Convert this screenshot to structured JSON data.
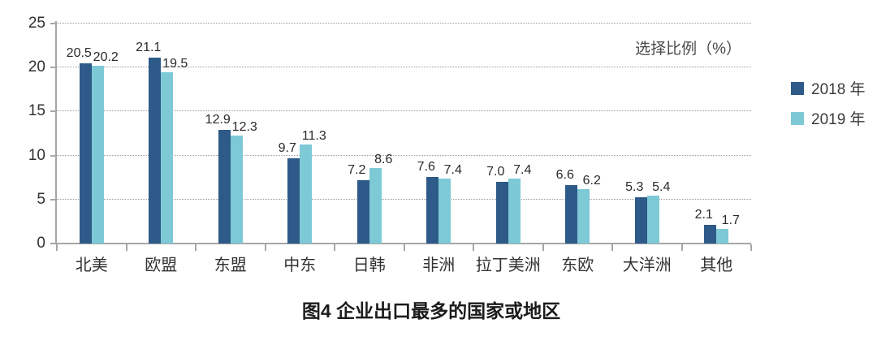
{
  "chart_data": {
    "type": "bar",
    "title": "图4 企业出口最多的国家或地区",
    "unit_label": "选择比例（%）",
    "caption": "图4 企业出口最多的国家或地区",
    "categories": [
      "北美",
      "欧盟",
      "东盟",
      "中东",
      "日韩",
      "非洲",
      "拉丁美洲",
      "东欧",
      "大洋洲",
      "其他"
    ],
    "series": [
      {
        "name": "2018 年",
        "color": "#2d5a88",
        "values": [
          20.5,
          21.1,
          12.9,
          9.7,
          7.2,
          7.6,
          7.0,
          6.6,
          5.3,
          2.1
        ]
      },
      {
        "name": "2019 年",
        "color": "#7dc9d6",
        "values": [
          20.2,
          19.5,
          12.3,
          11.3,
          8.6,
          7.4,
          7.4,
          6.2,
          5.4,
          1.7
        ]
      }
    ],
    "ylim": [
      0,
      25
    ],
    "yticks": [
      0,
      5,
      10,
      15,
      20,
      25
    ],
    "grid": "horizontal-dotted",
    "legend_position": "right",
    "axis_color": "#a6a6a6",
    "gridline_color": "#9b9b9b",
    "value_label_color": "#2a2a2a"
  }
}
